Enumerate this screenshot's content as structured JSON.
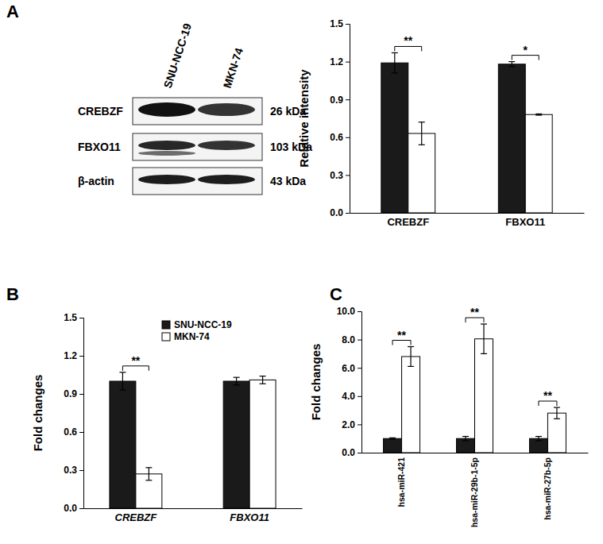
{
  "panel_labels": [
    "A",
    "B",
    "C"
  ],
  "blot": {
    "columns": [
      "SNU-NCC-19",
      "MKN-74"
    ],
    "rows": [
      {
        "label": "CREBZF",
        "size": "26 kDa"
      },
      {
        "label": "FBXO11",
        "size": "103 kDa"
      },
      {
        "label": "β-actin",
        "size": "43 kDa"
      }
    ]
  },
  "chart_data": [
    {
      "type": "bar",
      "y_label": "Relative intensity",
      "categories": [
        "CREBZF",
        "FBXO11"
      ],
      "series": [
        {
          "color": "#1a1a1a",
          "values": [
            1.19,
            1.18
          ],
          "errors": [
            0.08,
            0.02
          ]
        },
        {
          "color": "#ffffff",
          "values": [
            0.63,
            0.78
          ],
          "errors": [
            0.09,
            0.005
          ]
        }
      ],
      "ylim": [
        0,
        1.5
      ],
      "yticks": [
        {
          "value": 0,
          "label": "0.0"
        },
        0.3,
        0.6,
        0.9,
        1.2,
        1.5
      ],
      "annotations": [
        {
          "text": "**",
          "category": "CREBZF"
        },
        {
          "text": "*",
          "category": "FBXO11"
        }
      ]
    },
    {
      "type": "bar",
      "y_label": "Fold changes",
      "categories": [
        "CREBZF",
        "FBXO11"
      ],
      "series": [
        {
          "name": "SNU-NCC-19",
          "color": "#1a1a1a",
          "values": [
            1.0,
            1.0
          ],
          "errors": [
            0.07,
            0.03
          ]
        },
        {
          "name": "MKN-74",
          "color": "#ffffff",
          "values": [
            0.27,
            1.01
          ],
          "errors": [
            0.05,
            0.03
          ]
        }
      ],
      "ylim": [
        0,
        1.5
      ],
      "yticks": [
        {
          "value": 0,
          "label": "0.0"
        },
        0.3,
        0.6,
        0.9,
        1.2,
        1.5
      ],
      "legend": "upper left",
      "annotations": [
        {
          "text": "**",
          "category": "CREBZF"
        }
      ]
    },
    {
      "type": "bar",
      "y_label": "Fold changes",
      "categories": [
        "hsa-miR-421",
        "hsa-miR-29b-1-5p",
        "hsa-miR-27b-5p"
      ],
      "series": [
        {
          "color": "#1a1a1a",
          "values": [
            1.0,
            1.0,
            1.0
          ],
          "errors": [
            0.05,
            0.15,
            0.15
          ]
        },
        {
          "color": "#ffffff",
          "values": [
            6.8,
            8.05,
            2.8
          ],
          "errors": [
            0.7,
            1.05,
            0.4
          ]
        }
      ],
      "ylim": [
        0,
        10
      ],
      "yticks": [
        {
          "value": 0,
          "label": "0.0"
        },
        {
          "value": 2,
          "label": "2.0"
        },
        {
          "value": 4,
          "label": "4.0"
        },
        {
          "value": 6,
          "label": "6.0"
        },
        {
          "value": 8,
          "label": "8.0"
        },
        {
          "value": 10,
          "label": "10.0"
        }
      ],
      "annotations": [
        {
          "text": "**",
          "category": "hsa-miR-421"
        },
        {
          "text": "**",
          "category": "hsa-miR-29b-1-5p"
        },
        {
          "text": "**",
          "category": "hsa-miR-27b-5p"
        }
      ]
    }
  ]
}
